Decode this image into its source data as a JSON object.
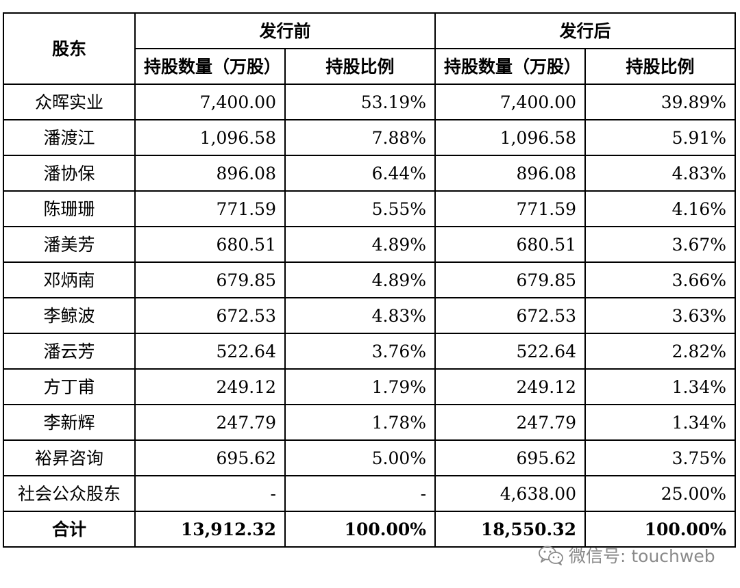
{
  "table": {
    "header": {
      "shareholder": "股东",
      "before_group": "发行前",
      "after_group": "发行后",
      "shares_col": "持股数量（万股）",
      "ratio_col": "持股比例"
    },
    "rows": [
      {
        "name": "众晖实业",
        "before_shares": "7,400.00",
        "before_ratio": "53.19%",
        "after_shares": "7,400.00",
        "after_ratio": "39.89%"
      },
      {
        "name": "潘渡江",
        "before_shares": "1,096.58",
        "before_ratio": "7.88%",
        "after_shares": "1,096.58",
        "after_ratio": "5.91%"
      },
      {
        "name": "潘协保",
        "before_shares": "896.08",
        "before_ratio": "6.44%",
        "after_shares": "896.08",
        "after_ratio": "4.83%"
      },
      {
        "name": "陈珊珊",
        "before_shares": "771.59",
        "before_ratio": "5.55%",
        "after_shares": "771.59",
        "after_ratio": "4.16%"
      },
      {
        "name": "潘美芳",
        "before_shares": "680.51",
        "before_ratio": "4.89%",
        "after_shares": "680.51",
        "after_ratio": "3.67%"
      },
      {
        "name": "邓炳南",
        "before_shares": "679.85",
        "before_ratio": "4.89%",
        "after_shares": "679.85",
        "after_ratio": "3.66%"
      },
      {
        "name": "李鲸波",
        "before_shares": "672.53",
        "before_ratio": "4.83%",
        "after_shares": "672.53",
        "after_ratio": "3.63%"
      },
      {
        "name": "潘云芳",
        "before_shares": "522.64",
        "before_ratio": "3.76%",
        "after_shares": "522.64",
        "after_ratio": "2.82%"
      },
      {
        "name": "方丁甫",
        "before_shares": "249.12",
        "before_ratio": "1.79%",
        "after_shares": "249.12",
        "after_ratio": "1.34%"
      },
      {
        "name": "李新辉",
        "before_shares": "247.79",
        "before_ratio": "1.78%",
        "after_shares": "247.79",
        "after_ratio": "1.34%"
      },
      {
        "name": "裕昇咨询",
        "before_shares": "695.62",
        "before_ratio": "5.00%",
        "after_shares": "695.62",
        "after_ratio": "3.75%"
      },
      {
        "name": "社会公众股东",
        "before_shares": "-",
        "before_ratio": "-",
        "after_shares": "4,638.00",
        "after_ratio": "25.00%"
      }
    ],
    "total": {
      "name": "合计",
      "before_shares": "13,912.32",
      "before_ratio": "100.00%",
      "after_shares": "18,550.32",
      "after_ratio": "100.00%"
    }
  },
  "watermark": {
    "icon": "wechat-icon",
    "text": "微信号: touchweb"
  }
}
